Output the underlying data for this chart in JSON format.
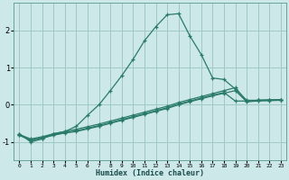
{
  "title": "",
  "xlabel": "Humidex (Indice chaleur)",
  "ylabel": "",
  "bg_color": "#cce8e8",
  "grid_color": "#a0c8c8",
  "line_color": "#2a7a6a",
  "xlim": [
    -0.5,
    23.5
  ],
  "ylim": [
    -1.5,
    2.75
  ],
  "xticks": [
    0,
    1,
    2,
    3,
    4,
    5,
    6,
    7,
    8,
    9,
    10,
    11,
    12,
    13,
    14,
    15,
    16,
    17,
    18,
    19,
    20,
    21,
    22,
    23
  ],
  "yticks": [
    -1,
    0,
    1,
    2
  ],
  "line1_x": [
    0,
    1,
    2,
    3,
    4,
    5,
    6,
    7,
    8,
    9,
    10,
    11,
    12,
    13,
    14,
    15,
    16,
    17,
    18,
    19,
    20,
    21,
    22,
    23
  ],
  "line1_y": [
    -0.78,
    -1.0,
    -0.92,
    -0.78,
    -0.72,
    -0.58,
    -0.28,
    0.0,
    0.38,
    0.78,
    1.22,
    1.72,
    2.1,
    2.42,
    2.45,
    1.85,
    1.35,
    0.72,
    0.68,
    0.42,
    0.12,
    0.12,
    0.13,
    0.13
  ],
  "line2_x": [
    0,
    1,
    2,
    3,
    4,
    5,
    6,
    7,
    8,
    9,
    10,
    11,
    12,
    13,
    14,
    15,
    16,
    17,
    18,
    19,
    20,
    21,
    22,
    23
  ],
  "line2_y": [
    -0.82,
    -0.95,
    -0.88,
    -0.8,
    -0.75,
    -0.7,
    -0.63,
    -0.56,
    -0.48,
    -0.4,
    -0.32,
    -0.24,
    -0.16,
    -0.08,
    0.02,
    0.1,
    0.18,
    0.26,
    0.33,
    0.1,
    0.1,
    0.12,
    0.12,
    0.13
  ],
  "line3_x": [
    0,
    1,
    2,
    3,
    4,
    5,
    6,
    7,
    8,
    9,
    10,
    11,
    12,
    13,
    14,
    15,
    16,
    17,
    18,
    19,
    20,
    21,
    22,
    23
  ],
  "line3_y": [
    -0.82,
    -0.96,
    -0.9,
    -0.82,
    -0.76,
    -0.72,
    -0.65,
    -0.58,
    -0.5,
    -0.42,
    -0.34,
    -0.26,
    -0.18,
    -0.1,
    0.0,
    0.08,
    0.16,
    0.24,
    0.31,
    0.38,
    0.08,
    0.1,
    0.11,
    0.12
  ],
  "line4_x": [
    0,
    1,
    2,
    3,
    4,
    5,
    6,
    7,
    8,
    9,
    10,
    11,
    12,
    13,
    14,
    15,
    16,
    17,
    18,
    19,
    20,
    21,
    22,
    23
  ],
  "line4_y": [
    -0.8,
    -0.92,
    -0.86,
    -0.78,
    -0.72,
    -0.66,
    -0.59,
    -0.52,
    -0.44,
    -0.36,
    -0.28,
    -0.2,
    -0.12,
    -0.04,
    0.06,
    0.14,
    0.22,
    0.3,
    0.38,
    0.46,
    0.1,
    0.12,
    0.13,
    0.14
  ]
}
